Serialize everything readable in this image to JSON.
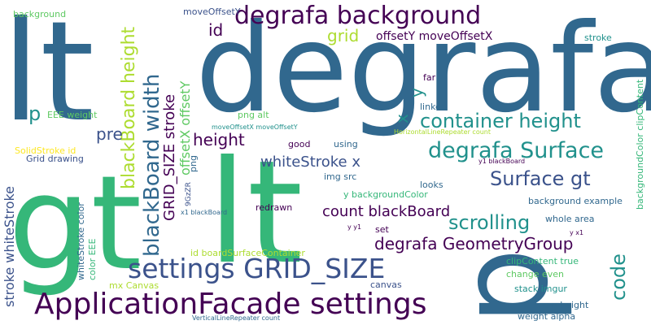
{
  "palette": {
    "dark_purple": "#440154",
    "indigo": "#3b528b",
    "blue": "#31688e",
    "teal": "#21918c",
    "green": "#35b779",
    "light_green": "#5ec962",
    "yellow_green": "#addc30",
    "yellow": "#fde725"
  },
  "words": [
    "lt",
    "degrafa",
    "gt",
    "lt",
    "p",
    "p",
    "ApplicationFacade settings",
    "settings GRID_SIZE",
    "degrafa background",
    "degrafa Surface",
    "container height",
    "blackBoard width",
    "blackBoard height",
    "GRID_SIZE stroke",
    "scrolling",
    "Surface gt",
    "degrafa GeometryGroup",
    "count blackBoard",
    "whiteStroke x",
    "height",
    "code",
    "grid",
    "pre",
    "id",
    "x",
    "y",
    "offsetX offsetY",
    "offsetY moveOffsetX",
    "stroke whiteStroke",
    "moveOffsetY",
    "background",
    "stroke",
    "backgroundColor clipContent",
    "far",
    "linked",
    "EEE weight",
    "png alt",
    "moveOffsetX moveOffsetY",
    "HorizontalLineRepeater count",
    "SolidStroke id",
    "good",
    "using",
    "Grid drawing",
    "img src",
    "y1 blackBoard",
    "png",
    "9GzZR",
    "looks",
    "y backgroundColor",
    "background example",
    "x1 blackBoard",
    "redrawn",
    "whole area",
    "whiteStroke color",
    "y y1",
    "set",
    "y x1",
    "color EEE",
    "id boardSurfaceContainer",
    "clipContent true",
    "change even",
    "mx Canvas",
    "canvas",
    "stack imgur",
    "new height",
    "weight alpha",
    "VerticalLineRepeater count"
  ]
}
